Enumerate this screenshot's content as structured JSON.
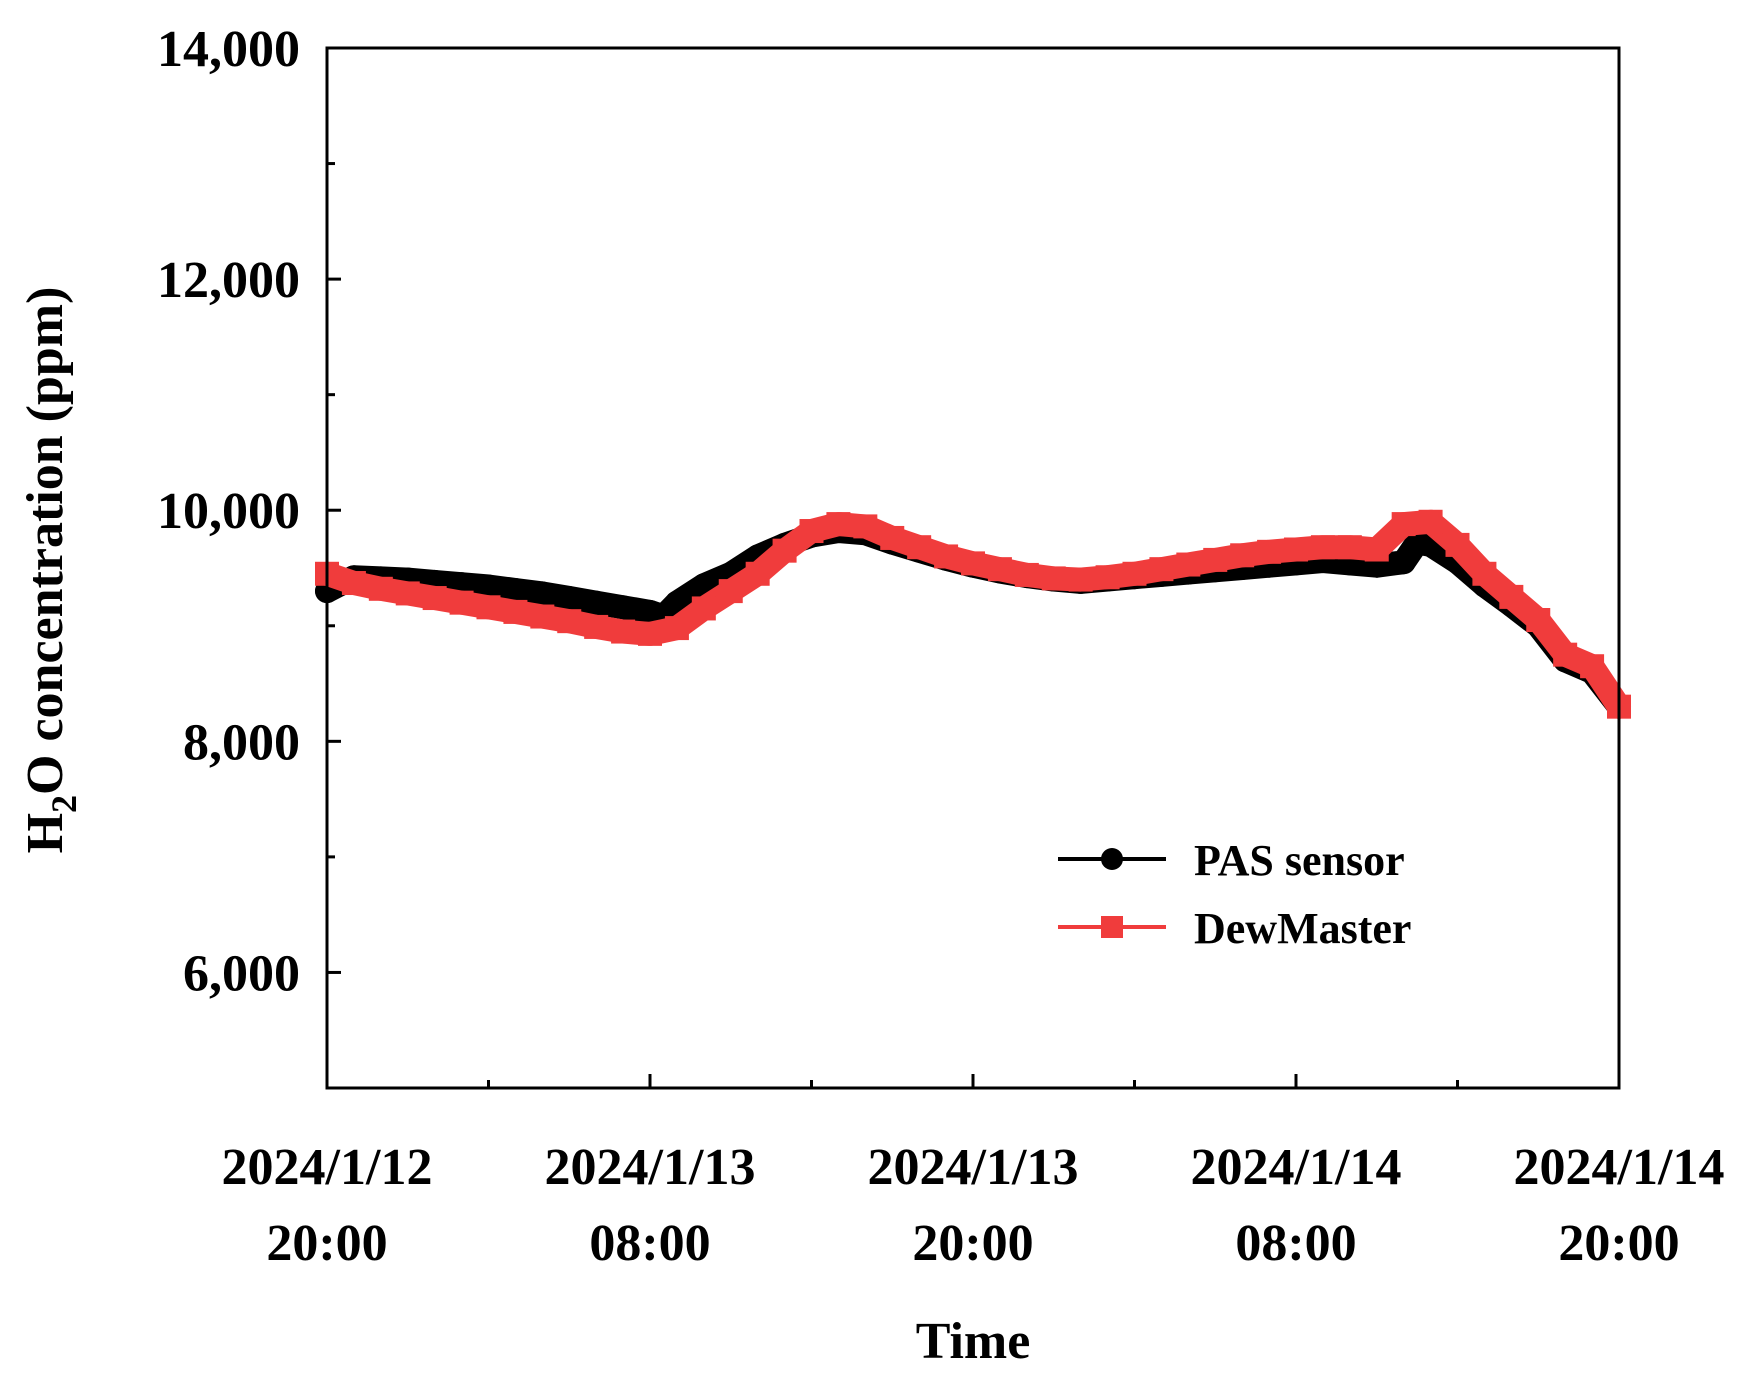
{
  "chart_data": {
    "type": "line",
    "xlabel": "Time",
    "ylabel": {
      "prefix": "H",
      "subscript": "2",
      "suffix": "O concentration (ppm)"
    },
    "ylim": [
      5000,
      14000
    ],
    "yticks": [
      {
        "value": 6000,
        "label": "6,000"
      },
      {
        "value": 8000,
        "label": "8,000"
      },
      {
        "value": 10000,
        "label": "10,000"
      },
      {
        "value": 12000,
        "label": "12,000"
      },
      {
        "value": 14000,
        "label": "14,000"
      }
    ],
    "xlim": [
      "2024/1/12 20:00",
      "2024/1/14 20:00"
    ],
    "xticks": [
      {
        "value": "2024/1/12 20:00",
        "line1": "2024/1/12",
        "line2": "20:00"
      },
      {
        "value": "2024/1/13 08:00",
        "line1": "2024/1/13",
        "line2": "08:00"
      },
      {
        "value": "2024/1/13 20:00",
        "line1": "2024/1/13",
        "line2": "20:00"
      },
      {
        "value": "2024/1/14 08:00",
        "line1": "2024/1/14",
        "line2": "08:00"
      },
      {
        "value": "2024/1/14 20:00",
        "line1": "2024/1/14",
        "line2": "20:00"
      }
    ],
    "minor_xticks": [
      "2024/1/13 02:00",
      "2024/1/13 14:00",
      "2024/1/14 02:00",
      "2024/1/14 14:00"
    ],
    "minor_yticks": [
      7000,
      9000,
      11000,
      13000
    ],
    "legend_position": "lower-right",
    "series": [
      {
        "name": "PAS sensor",
        "color": "#000000",
        "marker": "circle",
        "points": [
          [
            "2024/1/12 20:00",
            9300
          ],
          [
            "2024/1/12 21:00",
            9420
          ],
          [
            "2024/1/12 22:00",
            9410
          ],
          [
            "2024/1/12 23:00",
            9400
          ],
          [
            "2024/1/13 00:00",
            9380
          ],
          [
            "2024/1/13 01:00",
            9360
          ],
          [
            "2024/1/13 02:00",
            9340
          ],
          [
            "2024/1/13 03:00",
            9310
          ],
          [
            "2024/1/13 04:00",
            9280
          ],
          [
            "2024/1/13 05:00",
            9240
          ],
          [
            "2024/1/13 06:00",
            9200
          ],
          [
            "2024/1/13 07:00",
            9160
          ],
          [
            "2024/1/13 08:00",
            9120
          ],
          [
            "2024/1/13 08:30",
            9080
          ],
          [
            "2024/1/13 09:00",
            9200
          ],
          [
            "2024/1/13 10:00",
            9350
          ],
          [
            "2024/1/13 11:00",
            9450
          ],
          [
            "2024/1/13 12:00",
            9600
          ],
          [
            "2024/1/13 13:00",
            9700
          ],
          [
            "2024/1/13 14:00",
            9780
          ],
          [
            "2024/1/13 15:00",
            9820
          ],
          [
            "2024/1/13 16:00",
            9800
          ],
          [
            "2024/1/13 17:00",
            9720
          ],
          [
            "2024/1/13 18:00",
            9650
          ],
          [
            "2024/1/13 19:00",
            9580
          ],
          [
            "2024/1/13 20:00",
            9520
          ],
          [
            "2024/1/13 21:00",
            9470
          ],
          [
            "2024/1/13 22:00",
            9430
          ],
          [
            "2024/1/13 23:00",
            9400
          ],
          [
            "2024/1/14 00:00",
            9380
          ],
          [
            "2024/1/14 01:00",
            9400
          ],
          [
            "2024/1/14 02:00",
            9420
          ],
          [
            "2024/1/14 03:00",
            9440
          ],
          [
            "2024/1/14 04:00",
            9460
          ],
          [
            "2024/1/14 05:00",
            9480
          ],
          [
            "2024/1/14 06:00",
            9500
          ],
          [
            "2024/1/14 07:00",
            9520
          ],
          [
            "2024/1/14 08:00",
            9540
          ],
          [
            "2024/1/14 09:00",
            9560
          ],
          [
            "2024/1/14 10:00",
            9540
          ],
          [
            "2024/1/14 11:00",
            9520
          ],
          [
            "2024/1/14 12:00",
            9550
          ],
          [
            "2024/1/14 12:30",
            9720
          ],
          [
            "2024/1/14 13:00",
            9700
          ],
          [
            "2024/1/14 14:00",
            9550
          ],
          [
            "2024/1/14 15:00",
            9350
          ],
          [
            "2024/1/14 16:00",
            9180
          ],
          [
            "2024/1/14 17:00",
            9000
          ],
          [
            "2024/1/14 18:00",
            8700
          ],
          [
            "2024/1/14 19:00",
            8600
          ],
          [
            "2024/1/14 20:00",
            8300
          ]
        ]
      },
      {
        "name": "DewMaster",
        "color": "#f03c3c",
        "marker": "square",
        "points": [
          [
            "2024/1/12 20:00",
            9450
          ],
          [
            "2024/1/12 21:00",
            9370
          ],
          [
            "2024/1/12 22:00",
            9320
          ],
          [
            "2024/1/12 23:00",
            9280
          ],
          [
            "2024/1/13 00:00",
            9240
          ],
          [
            "2024/1/13 01:00",
            9200
          ],
          [
            "2024/1/13 02:00",
            9160
          ],
          [
            "2024/1/13 03:00",
            9120
          ],
          [
            "2024/1/13 04:00",
            9080
          ],
          [
            "2024/1/13 05:00",
            9040
          ],
          [
            "2024/1/13 06:00",
            8990
          ],
          [
            "2024/1/13 07:00",
            8950
          ],
          [
            "2024/1/13 08:00",
            8930
          ],
          [
            "2024/1/13 09:00",
            8980
          ],
          [
            "2024/1/13 10:00",
            9150
          ],
          [
            "2024/1/13 11:00",
            9300
          ],
          [
            "2024/1/13 12:00",
            9450
          ],
          [
            "2024/1/13 13:00",
            9650
          ],
          [
            "2024/1/13 14:00",
            9820
          ],
          [
            "2024/1/13 15:00",
            9880
          ],
          [
            "2024/1/13 16:00",
            9860
          ],
          [
            "2024/1/13 17:00",
            9760
          ],
          [
            "2024/1/13 18:00",
            9680
          ],
          [
            "2024/1/13 19:00",
            9600
          ],
          [
            "2024/1/13 20:00",
            9540
          ],
          [
            "2024/1/13 21:00",
            9490
          ],
          [
            "2024/1/13 22:00",
            9440
          ],
          [
            "2024/1/13 23:00",
            9410
          ],
          [
            "2024/1/14 00:00",
            9400
          ],
          [
            "2024/1/14 01:00",
            9420
          ],
          [
            "2024/1/14 02:00",
            9450
          ],
          [
            "2024/1/14 03:00",
            9490
          ],
          [
            "2024/1/14 04:00",
            9530
          ],
          [
            "2024/1/14 05:00",
            9570
          ],
          [
            "2024/1/14 06:00",
            9610
          ],
          [
            "2024/1/14 07:00",
            9640
          ],
          [
            "2024/1/14 08:00",
            9660
          ],
          [
            "2024/1/14 09:00",
            9680
          ],
          [
            "2024/1/14 10:00",
            9680
          ],
          [
            "2024/1/14 11:00",
            9660
          ],
          [
            "2024/1/14 12:00",
            9880
          ],
          [
            "2024/1/14 13:00",
            9900
          ],
          [
            "2024/1/14 14:00",
            9700
          ],
          [
            "2024/1/14 15:00",
            9450
          ],
          [
            "2024/1/14 16:00",
            9250
          ],
          [
            "2024/1/14 17:00",
            9050
          ],
          [
            "2024/1/14 18:00",
            8750
          ],
          [
            "2024/1/14 19:00",
            8650
          ],
          [
            "2024/1/14 20:00",
            8300
          ]
        ]
      }
    ]
  }
}
